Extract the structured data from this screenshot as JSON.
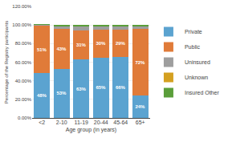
{
  "chart_data": {
    "type": "bar",
    "stacked": true,
    "categories": [
      "<2",
      "2-10",
      "11-19",
      "20-44",
      "45-64",
      "65+"
    ],
    "series": [
      {
        "name": "Private",
        "color": "#5BA3D0",
        "values": [
          48,
          53,
          63,
          65,
          66,
          24
        ],
        "data_labels": true,
        "value_labels": [
          "48%",
          "53%",
          "63%",
          "65%",
          "66%",
          "24%"
        ]
      },
      {
        "name": "Public",
        "color": "#E07B39",
        "values": [
          51,
          43,
          31,
          30,
          29,
          72
        ],
        "data_labels": true,
        "value_labels": [
          "51%",
          "43%",
          "31%",
          "30%",
          "29%",
          "72%"
        ]
      },
      {
        "name": "Uninsured",
        "color": "#9E9E9E",
        "values": [
          1,
          2,
          4,
          3,
          3,
          2
        ]
      },
      {
        "name": "Unknown",
        "color": "#D4A020",
        "values": [
          0.2,
          0.5,
          0.5,
          0.5,
          0.5,
          0.5
        ]
      },
      {
        "name": "Insured Other",
        "color": "#5A9E3A",
        "values": [
          0.8,
          1.5,
          1.5,
          1.5,
          1.5,
          1.5
        ]
      }
    ],
    "xlabel": "Age group (in years)",
    "ylabel": "Percentage of the Registry participants",
    "ylim": [
      0,
      120
    ],
    "yticks": [
      {
        "value": 0,
        "label": "0.00%"
      },
      {
        "value": 20,
        "label": "20.00%"
      },
      {
        "value": 40,
        "label": "40.00%"
      },
      {
        "value": 60,
        "label": "60.00%"
      },
      {
        "value": 80,
        "label": "80.00%"
      },
      {
        "value": 100,
        "label": "100.00%"
      },
      {
        "value": 120,
        "label": "120.00%"
      }
    ],
    "grid": true,
    "legend": "right"
  }
}
